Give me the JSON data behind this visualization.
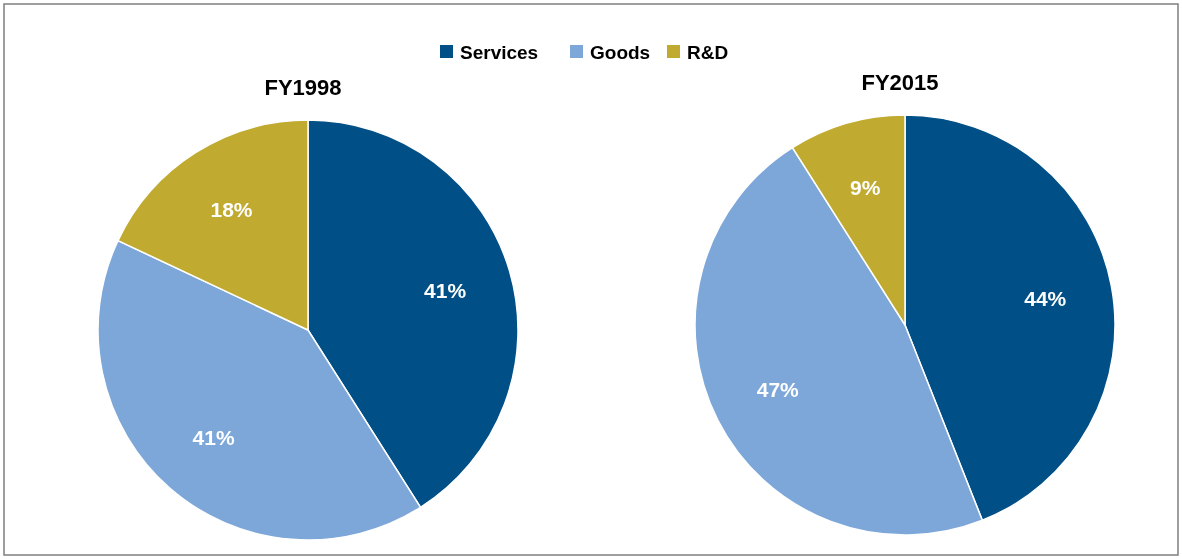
{
  "chart_data": [
    {
      "type": "pie",
      "title": "FY1998",
      "categories": [
        "Services",
        "Goods",
        "R&D"
      ],
      "values": [
        41,
        41,
        18
      ],
      "colors": [
        "#004f86",
        "#7da7d9",
        "#c0aa2f"
      ],
      "value_labels": [
        "41%",
        "41%",
        "18%"
      ],
      "legend": "top"
    },
    {
      "type": "pie",
      "title": "FY2015",
      "categories": [
        null,
        null,
        null
      ],
      "values": [
        44,
        47,
        9
      ],
      "colors": [
        "#004f86",
        "#7da7d9",
        "#c0aa2f"
      ],
      "value_labels": [
        "44%",
        "47%",
        "9%"
      ]
    }
  ]
}
